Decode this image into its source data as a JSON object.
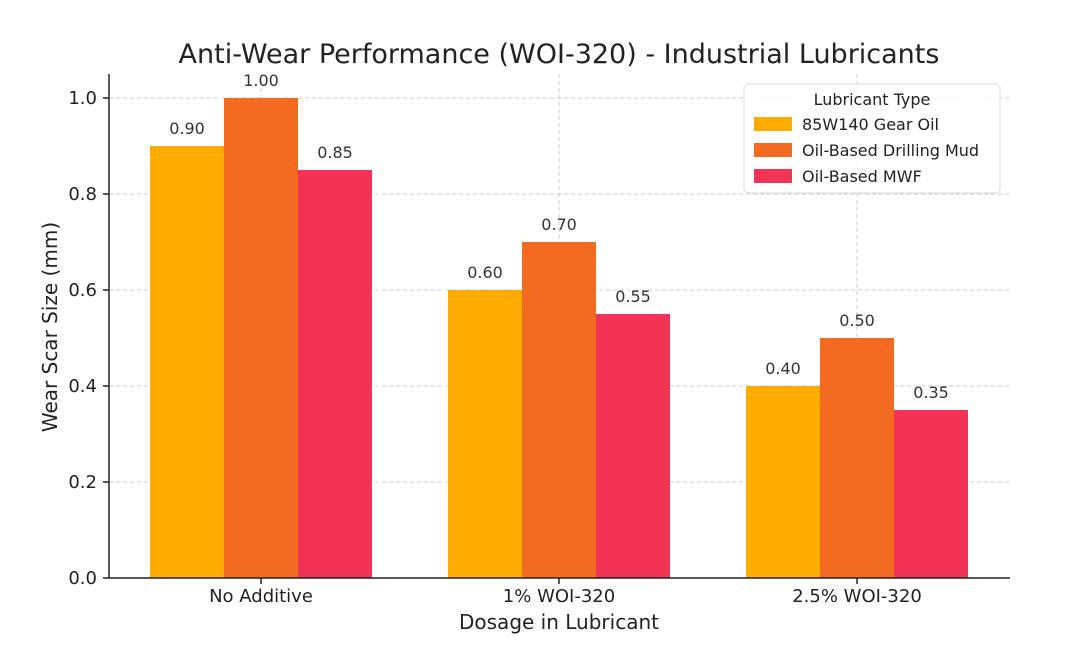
{
  "chart_data": {
    "type": "bar",
    "title": "Anti-Wear Performance (WOI-320) - Industrial Lubricants",
    "xlabel": "Dosage in Lubricant",
    "ylabel": "Wear Scar Size (mm)",
    "categories": [
      "No Additive",
      "1% WOI-320",
      "2.5% WOI-320"
    ],
    "ylim": [
      0,
      1.05
    ],
    "yticks": [
      0.0,
      0.2,
      0.4,
      0.6,
      0.8,
      1.0
    ],
    "ytick_labels": [
      "0.0",
      "0.2",
      "0.4",
      "0.6",
      "0.8",
      "1.0"
    ],
    "grid": true,
    "legend": {
      "title": "Lubricant Type",
      "placement": "top-right"
    },
    "series": [
      {
        "name": "85W140 Gear Oil",
        "color": "#FFAB00",
        "values": [
          0.9,
          0.6,
          0.4
        ],
        "labels": [
          "0.90",
          "0.60",
          "0.40"
        ]
      },
      {
        "name": "Oil-Based Drilling Mud",
        "color": "#F26B20",
        "values": [
          1.0,
          0.7,
          0.5
        ],
        "labels": [
          "1.00",
          "0.70",
          "0.50"
        ]
      },
      {
        "name": "Oil-Based MWF",
        "color": "#F23355",
        "values": [
          0.85,
          0.55,
          0.35
        ],
        "labels": [
          "0.85",
          "0.55",
          "0.35"
        ]
      }
    ]
  }
}
